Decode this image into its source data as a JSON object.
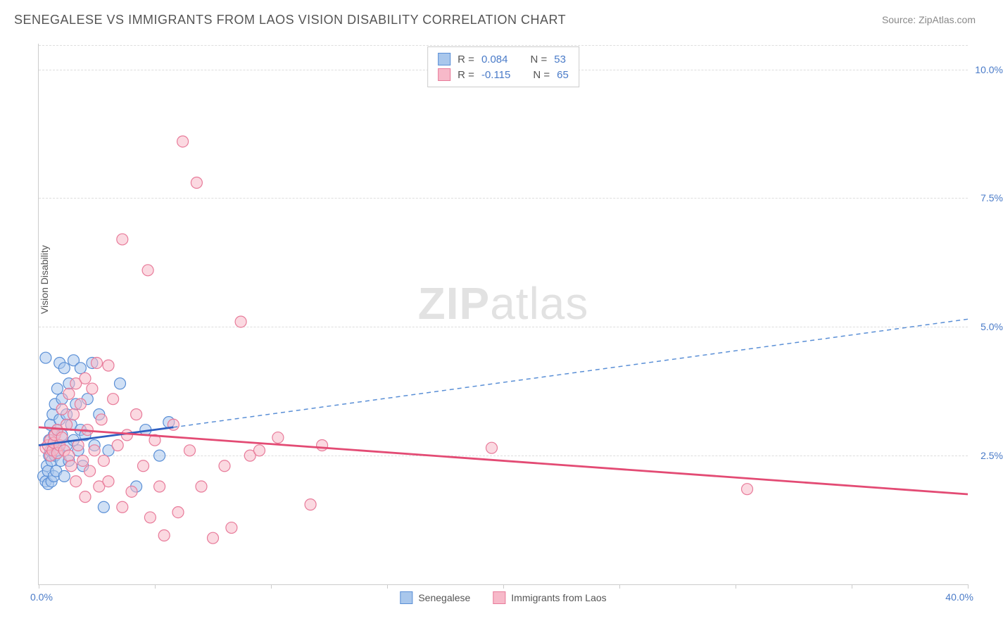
{
  "title": "SENEGALESE VS IMMIGRANTS FROM LAOS VISION DISABILITY CORRELATION CHART",
  "source": "Source: ZipAtlas.com",
  "y_axis_label": "Vision Disability",
  "watermark_zip": "ZIP",
  "watermark_atlas": "atlas",
  "chart": {
    "type": "scatter-with-trendlines",
    "background_color": "#ffffff",
    "grid_color": "#dddddd",
    "axis_color": "#cccccc",
    "tick_label_color": "#4a7bc8",
    "xlim": [
      0,
      40
    ],
    "ylim": [
      0,
      10.5
    ],
    "x_ticks": [
      0,
      5,
      10,
      15,
      20,
      25,
      30,
      35,
      40
    ],
    "x_origin_label": "0.0%",
    "x_max_label": "40.0%",
    "y_ticks": [
      {
        "v": 2.5,
        "label": "2.5%"
      },
      {
        "v": 5.0,
        "label": "5.0%"
      },
      {
        "v": 7.5,
        "label": "7.5%"
      },
      {
        "v": 10.0,
        "label": "10.0%"
      }
    ],
    "marker_radius": 8,
    "marker_stroke_width": 1.2,
    "series": [
      {
        "name": "Senegalese",
        "fill": "#a9c7ec",
        "stroke": "#5a8fd6",
        "fill_opacity": 0.55,
        "R": "0.084",
        "N": "53",
        "trend": {
          "x1": 0,
          "y1": 2.7,
          "x2": 5.8,
          "y2": 3.05,
          "stroke": "#2e5fc1",
          "width": 2.8
        },
        "extrapolation": {
          "x1": 5.8,
          "y1": 3.05,
          "x2": 40,
          "y2": 5.15,
          "stroke": "#5a8fd6",
          "width": 1.5,
          "dash": "6,5"
        },
        "points": [
          [
            0.2,
            2.1
          ],
          [
            0.3,
            2.0
          ],
          [
            0.35,
            2.3
          ],
          [
            0.4,
            1.95
          ],
          [
            0.4,
            2.2
          ],
          [
            0.45,
            2.5
          ],
          [
            0.45,
            2.8
          ],
          [
            0.5,
            2.6
          ],
          [
            0.5,
            3.1
          ],
          [
            0.55,
            2.0
          ],
          [
            0.55,
            2.4
          ],
          [
            0.6,
            2.7
          ],
          [
            0.6,
            3.3
          ],
          [
            0.65,
            2.1
          ],
          [
            0.65,
            2.9
          ],
          [
            0.7,
            2.5
          ],
          [
            0.7,
            3.5
          ],
          [
            0.75,
            2.2
          ],
          [
            0.8,
            3.0
          ],
          [
            0.8,
            3.8
          ],
          [
            0.85,
            2.6
          ],
          [
            0.9,
            3.2
          ],
          [
            0.9,
            4.3
          ],
          [
            0.95,
            2.4
          ],
          [
            1.0,
            2.9
          ],
          [
            1.0,
            3.6
          ],
          [
            1.1,
            2.1
          ],
          [
            1.1,
            4.2
          ],
          [
            1.2,
            3.3
          ],
          [
            1.2,
            2.7
          ],
          [
            1.3,
            3.9
          ],
          [
            1.3,
            2.4
          ],
          [
            1.4,
            3.1
          ],
          [
            1.5,
            4.35
          ],
          [
            1.5,
            2.8
          ],
          [
            1.6,
            3.5
          ],
          [
            1.7,
            2.6
          ],
          [
            1.8,
            4.2
          ],
          [
            1.8,
            3.0
          ],
          [
            1.9,
            2.3
          ],
          [
            2.0,
            2.9
          ],
          [
            2.1,
            3.6
          ],
          [
            2.3,
            4.3
          ],
          [
            2.4,
            2.7
          ],
          [
            2.6,
            3.3
          ],
          [
            2.8,
            1.5
          ],
          [
            3.0,
            2.6
          ],
          [
            3.5,
            3.9
          ],
          [
            4.2,
            1.9
          ],
          [
            4.6,
            3.0
          ],
          [
            5.2,
            2.5
          ],
          [
            5.6,
            3.15
          ],
          [
            0.3,
            4.4
          ]
        ]
      },
      {
        "name": "Immigrants from Laos",
        "fill": "#f7b9c9",
        "stroke": "#e87b9a",
        "fill_opacity": 0.55,
        "R": "-0.115",
        "N": "65",
        "trend": {
          "x1": 0,
          "y1": 3.05,
          "x2": 40,
          "y2": 1.75,
          "stroke": "#e34b74",
          "width": 2.8
        },
        "points": [
          [
            0.3,
            2.65
          ],
          [
            0.4,
            2.7
          ],
          [
            0.5,
            2.5
          ],
          [
            0.5,
            2.8
          ],
          [
            0.6,
            2.6
          ],
          [
            0.65,
            2.75
          ],
          [
            0.7,
            2.9
          ],
          [
            0.8,
            2.55
          ],
          [
            0.8,
            3.0
          ],
          [
            0.9,
            2.7
          ],
          [
            1.0,
            2.85
          ],
          [
            1.0,
            3.4
          ],
          [
            1.1,
            2.6
          ],
          [
            1.2,
            3.1
          ],
          [
            1.3,
            2.5
          ],
          [
            1.3,
            3.7
          ],
          [
            1.4,
            2.3
          ],
          [
            1.5,
            3.3
          ],
          [
            1.6,
            2.0
          ],
          [
            1.6,
            3.9
          ],
          [
            1.7,
            2.7
          ],
          [
            1.8,
            3.5
          ],
          [
            1.9,
            2.4
          ],
          [
            2.0,
            4.0
          ],
          [
            2.0,
            1.7
          ],
          [
            2.1,
            3.0
          ],
          [
            2.2,
            2.2
          ],
          [
            2.3,
            3.8
          ],
          [
            2.4,
            2.6
          ],
          [
            2.5,
            4.3
          ],
          [
            2.6,
            1.9
          ],
          [
            2.7,
            3.2
          ],
          [
            2.8,
            2.4
          ],
          [
            3.0,
            4.25
          ],
          [
            3.0,
            2.0
          ],
          [
            3.2,
            3.6
          ],
          [
            3.4,
            2.7
          ],
          [
            3.6,
            1.5
          ],
          [
            3.6,
            6.7
          ],
          [
            3.8,
            2.9
          ],
          [
            4.0,
            1.8
          ],
          [
            4.2,
            3.3
          ],
          [
            4.5,
            2.3
          ],
          [
            4.7,
            6.1
          ],
          [
            4.8,
            1.3
          ],
          [
            5.0,
            2.8
          ],
          [
            5.2,
            1.9
          ],
          [
            5.4,
            0.95
          ],
          [
            5.8,
            3.1
          ],
          [
            6.0,
            1.4
          ],
          [
            6.2,
            8.6
          ],
          [
            6.5,
            2.6
          ],
          [
            6.8,
            7.8
          ],
          [
            7.0,
            1.9
          ],
          [
            7.5,
            0.9
          ],
          [
            8.0,
            2.3
          ],
          [
            8.3,
            1.1
          ],
          [
            8.7,
            5.1
          ],
          [
            9.1,
            2.5
          ],
          [
            9.5,
            2.6
          ],
          [
            10.3,
            2.85
          ],
          [
            11.7,
            1.55
          ],
          [
            12.2,
            2.7
          ],
          [
            19.5,
            2.65
          ],
          [
            30.5,
            1.85
          ]
        ]
      }
    ]
  },
  "legend": {
    "series1": "Senegalese",
    "series2": "Immigrants from Laos"
  },
  "stats_labels": {
    "R": "R =",
    "N": "N ="
  }
}
